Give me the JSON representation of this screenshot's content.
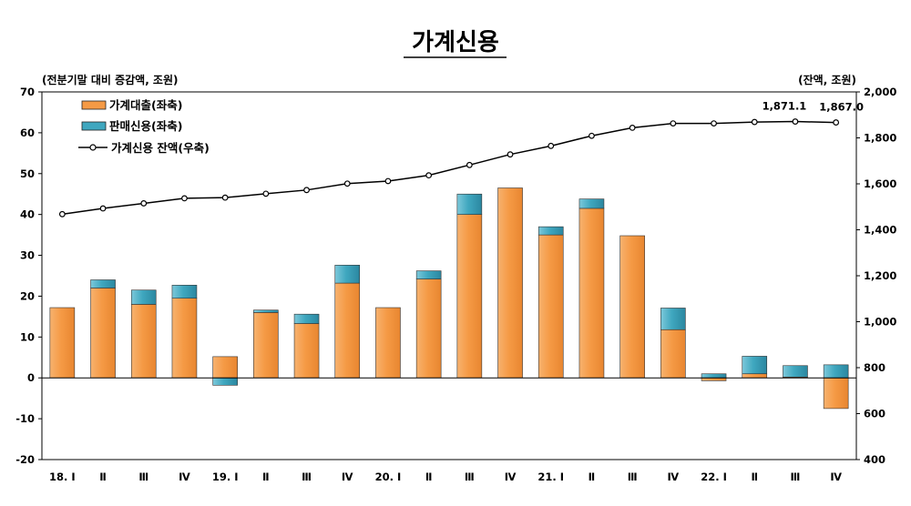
{
  "chart_data": {
    "type": "bar+line",
    "title": "가계신용",
    "left_unit": "(전분기말 대비 증감액, 조원)",
    "right_unit": "(잔액, 조원)",
    "categories": [
      "18. Ⅰ",
      "Ⅱ",
      "Ⅲ",
      "Ⅳ",
      "19. Ⅰ",
      "Ⅱ",
      "Ⅲ",
      "Ⅳ",
      "20. Ⅰ",
      "Ⅱ",
      "Ⅲ",
      "Ⅳ",
      "21. Ⅰ",
      "Ⅱ",
      "Ⅲ",
      "Ⅳ",
      "22. Ⅰ",
      "Ⅱ",
      "Ⅲ",
      "Ⅳ"
    ],
    "left_axis": {
      "min": -20,
      "max": 70,
      "step": 10,
      "ticks": [
        "-20",
        "-10",
        "0",
        "10",
        "20",
        "30",
        "40",
        "50",
        "60",
        "70"
      ]
    },
    "right_axis": {
      "min": 400,
      "max": 2000,
      "step": 200,
      "ticks": [
        "400",
        "600",
        "800",
        "1,000",
        "1,200",
        "1,400",
        "1,600",
        "1,800",
        "2,000"
      ]
    },
    "series": [
      {
        "name": "가계대출(좌축)",
        "type": "bar-stacked",
        "axis": "left",
        "color": "#F59A45",
        "values": [
          17.2,
          22.0,
          18.0,
          19.5,
          5.2,
          16.0,
          13.3,
          23.2,
          17.2,
          24.2,
          40.0,
          46.5,
          35.0,
          41.5,
          34.8,
          11.8,
          -0.7,
          1.0,
          0.2,
          -7.5
        ]
      },
      {
        "name": "판매신용(좌축)",
        "type": "bar-stacked",
        "axis": "left",
        "color": "#3FA7BF",
        "values": [
          0.0,
          2.0,
          3.5,
          3.2,
          -1.8,
          0.6,
          2.3,
          4.4,
          0.0,
          2.0,
          5.0,
          0.0,
          2.0,
          2.3,
          0.0,
          5.3,
          1.0,
          4.3,
          2.8,
          3.2
        ]
      },
      {
        "name": "가계신용 잔액(우축)",
        "type": "line",
        "axis": "right",
        "color": "#000000",
        "values": [
          1468,
          1493,
          1515,
          1537,
          1540,
          1557,
          1573,
          1601,
          1612,
          1637,
          1682,
          1728,
          1765,
          1809,
          1844,
          1863,
          1863,
          1869,
          1871.1,
          1867.0
        ]
      }
    ],
    "annotations": [
      "1,871.1",
      "1,867.0"
    ],
    "grid": false,
    "legend_position": "top-left"
  }
}
